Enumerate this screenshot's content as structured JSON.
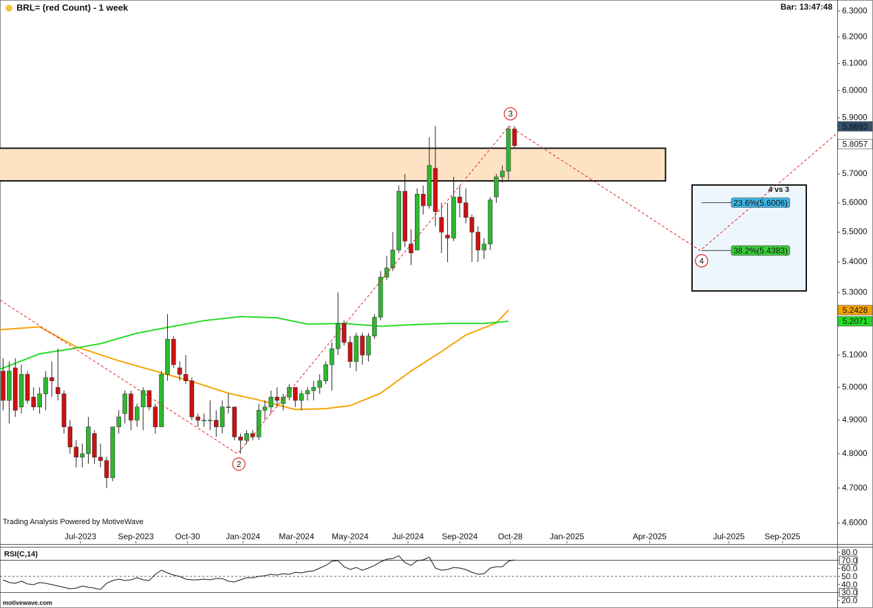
{
  "chart_data": {
    "type": "candlestick",
    "title": "BRL= (red Count) - 1 week",
    "bar_time": "Bar: 13:47:48",
    "credit": "Trading Analysis Powered by MotiveWave",
    "footer": "motivewave.com",
    "log_scale": true,
    "ylim": [
      4.543,
      6.343
    ],
    "yticks": [
      {
        "value": 4.6,
        "label": "4.6000"
      },
      {
        "value": 4.7,
        "label": "4.7000"
      },
      {
        "value": 4.8,
        "label": "4.8000"
      },
      {
        "value": 4.9,
        "label": "4.9000"
      },
      {
        "value": 5.0,
        "label": "5.0000"
      },
      {
        "value": 5.1,
        "label": "5.1000"
      },
      {
        "value": 5.2,
        "label": "5.2000"
      },
      {
        "value": 5.3,
        "label": "5.3000"
      },
      {
        "value": 5.4,
        "label": "5.4000"
      },
      {
        "value": 5.5,
        "label": "5.5000"
      },
      {
        "value": 5.6,
        "label": "5.6000"
      },
      {
        "value": 5.7,
        "label": "5.7000"
      },
      {
        "value": 5.8,
        "label": "5.8000"
      },
      {
        "value": 5.9,
        "label": "5.9000"
      },
      {
        "value": 6.0,
        "label": "6.0000"
      },
      {
        "value": 6.1,
        "label": "6.1000"
      },
      {
        "value": 6.2,
        "label": "6.2000"
      },
      {
        "value": 6.3,
        "label": "6.3000"
      }
    ],
    "xlim": [
      -0.51,
      137
    ],
    "xticks": [
      {
        "value": 12.7,
        "label": "Jul-2023"
      },
      {
        "value": 21.8,
        "label": "Sep-2023"
      },
      {
        "value": 30.3,
        "label": "Oct-30"
      },
      {
        "value": 39.4,
        "label": "Jan-2024"
      },
      {
        "value": 48.2,
        "label": "Mar-2024"
      },
      {
        "value": 57.0,
        "label": "May-2024"
      },
      {
        "value": 66.5,
        "label": "Jul-2024"
      },
      {
        "value": 75.0,
        "label": "Sep-2024"
      },
      {
        "value": 83.3,
        "label": "Oct-28"
      },
      {
        "value": 92.6,
        "label": "Jan-2025"
      },
      {
        "value": 106.2,
        "label": "Apr-2025"
      },
      {
        "value": 119.2,
        "label": "Jul-2025"
      },
      {
        "value": 128.0,
        "label": "Sep-2025"
      }
    ],
    "up_color": "#2db82d",
    "down_color": "#cc1111",
    "candles": {
      "open": [
        5.05,
        4.96,
        5.06,
        4.94,
        5.04,
        4.97,
        4.94,
        4.98,
        5.03,
        5.0,
        4.98,
        4.88,
        4.82,
        4.79,
        4.8,
        4.86,
        4.79,
        4.78,
        4.73,
        4.88,
        4.92,
        4.98,
        4.9,
        4.94,
        4.99,
        4.94,
        4.88,
        5.04,
        5.15,
        5.06,
        5.04,
        5.02,
        4.91,
        4.9,
        4.9,
        4.9,
        4.88,
        4.94,
        4.94,
        4.85,
        4.84,
        4.86,
        4.85,
        4.93,
        4.94,
        4.97,
        4.95,
        4.97,
        5.0,
        4.96,
        4.98,
        4.99,
        5.0,
        5.02,
        5.07,
        5.12,
        5.2,
        5.14,
        5.08,
        5.16,
        5.1,
        5.16,
        5.22,
        5.35,
        5.38,
        5.44,
        5.64,
        5.46,
        5.44,
        5.63,
        5.59,
        5.72,
        5.55,
        5.49,
        5.48,
        5.62,
        5.6,
        5.55,
        5.5,
        5.44,
        5.46,
        5.62,
        5.69,
        5.71,
        5.86
      ],
      "high": [
        5.09,
        5.08,
        5.09,
        5.07,
        5.05,
        5.0,
        5.0,
        5.05,
        5.08,
        5.12,
        4.99,
        4.9,
        4.84,
        4.83,
        4.91,
        4.87,
        4.83,
        4.79,
        4.88,
        4.93,
        4.99,
        4.99,
        4.95,
        5.0,
        4.99,
        4.95,
        5.05,
        5.23,
        5.16,
        5.08,
        5.1,
        5.03,
        4.92,
        4.92,
        4.96,
        4.93,
        4.96,
        4.98,
        4.94,
        4.86,
        4.87,
        4.87,
        4.95,
        4.96,
        4.99,
        5.0,
        4.98,
        5.01,
        5.0,
        4.99,
        5.0,
        5.02,
        5.04,
        5.08,
        5.14,
        5.3,
        5.21,
        5.16,
        5.17,
        5.17,
        5.17,
        5.23,
        5.37,
        5.42,
        5.5,
        5.66,
        5.7,
        5.51,
        5.65,
        5.66,
        5.83,
        5.87,
        5.6,
        5.6,
        5.69,
        5.66,
        5.65,
        5.56,
        5.52,
        5.48,
        5.62,
        5.7,
        5.73,
        5.87,
        5.87
      ],
      "low": [
        4.93,
        4.89,
        4.91,
        4.92,
        4.95,
        4.93,
        4.92,
        4.93,
        4.97,
        4.96,
        4.86,
        4.8,
        4.76,
        4.76,
        4.77,
        4.77,
        4.76,
        4.7,
        4.72,
        4.86,
        4.89,
        4.87,
        4.88,
        4.87,
        4.93,
        4.86,
        4.88,
        5.02,
        5.06,
        5.02,
        5.01,
        4.9,
        4.88,
        4.88,
        4.87,
        4.85,
        4.86,
        4.92,
        4.84,
        4.8,
        4.83,
        4.84,
        4.84,
        4.9,
        4.92,
        4.94,
        4.93,
        4.96,
        4.94,
        4.93,
        4.96,
        4.96,
        4.98,
        5.01,
        4.99,
        5.1,
        5.13,
        5.06,
        5.05,
        5.07,
        5.08,
        5.15,
        5.21,
        5.34,
        5.37,
        5.43,
        5.45,
        5.39,
        5.44,
        5.56,
        5.58,
        5.52,
        5.43,
        5.4,
        5.47,
        5.55,
        5.53,
        5.4,
        5.4,
        5.41,
        5.44,
        5.6,
        5.67,
        5.68,
        5.79
      ],
      "close": [
        4.96,
        5.05,
        4.93,
        5.04,
        4.96,
        4.94,
        4.98,
        5.03,
        5.02,
        4.98,
        4.88,
        4.82,
        4.79,
        4.8,
        4.88,
        4.79,
        4.78,
        4.73,
        4.88,
        4.91,
        4.98,
        4.9,
        4.94,
        4.99,
        4.94,
        4.88,
        5.04,
        5.15,
        5.07,
        5.04,
        5.02,
        4.91,
        4.9,
        4.9,
        4.9,
        4.88,
        4.94,
        4.94,
        4.85,
        4.84,
        4.86,
        4.85,
        4.93,
        4.94,
        4.97,
        4.96,
        4.97,
        5.0,
        4.96,
        4.98,
        4.99,
        5.0,
        5.02,
        5.07,
        5.12,
        5.2,
        5.14,
        5.08,
        5.16,
        5.1,
        5.16,
        5.22,
        5.35,
        5.38,
        5.44,
        5.64,
        5.47,
        5.43,
        5.63,
        5.59,
        5.73,
        5.57,
        5.5,
        5.48,
        5.62,
        5.6,
        5.55,
        5.5,
        5.44,
        5.46,
        5.61,
        5.69,
        5.71,
        5.86,
        5.8
      ]
    },
    "series": [
      {
        "color": "#f5a300",
        "x": [
          -0.5,
          6,
          12,
          19,
          25,
          31,
          37,
          42,
          48,
          53,
          57,
          62,
          67,
          72,
          76,
          81,
          83
        ],
        "values": [
          5.18,
          5.189,
          5.126,
          5.082,
          5.05,
          5.018,
          4.982,
          4.961,
          4.932,
          4.935,
          4.944,
          4.982,
          5.05,
          5.111,
          5.163,
          5.202,
          5.243
        ]
      },
      {
        "color": "#22dd22",
        "x": [
          -0.5,
          6,
          11,
          16,
          22,
          28,
          33,
          39,
          45,
          50,
          56,
          62,
          67,
          73,
          79,
          83
        ],
        "values": [
          5.056,
          5.104,
          5.119,
          5.136,
          5.169,
          5.191,
          5.209,
          5.222,
          5.218,
          5.198,
          5.2,
          5.191,
          5.196,
          5.2,
          5.2,
          5.207
        ]
      }
    ],
    "wave": {
      "color": "#e02020",
      "points": [
        {
          "x": -0.5,
          "value": 5.275
        },
        {
          "x": 38.5,
          "value": 4.8,
          "label": "2"
        },
        {
          "x": 83.1,
          "value": 5.87,
          "label": "3"
        },
        {
          "x": 114.5,
          "value": 5.4383,
          "label": "4"
        },
        {
          "x": 137,
          "value": 5.845
        }
      ]
    },
    "zone": {
      "from": 5.676,
      "to": 5.791,
      "x_end": 108.8,
      "color": "#fde3c4"
    },
    "fib": {
      "title": "4 vs 3",
      "levels": [
        {
          "value": 5.6006,
          "label": "23.6%(5.6006)",
          "color": "#3db6e8"
        },
        {
          "value": 5.4383,
          "label": "38.2%(5.4383)",
          "color": "#3ad13a"
        }
      ]
    },
    "price_tags": [
      {
        "value": 5.8693,
        "color": "#34506e",
        "text_color": "#ffffff"
      },
      {
        "value": 5.8057,
        "color": "#ffffff",
        "text_color": "#111111"
      },
      {
        "value": 5.2428,
        "color": "#f5a300",
        "text_color": "#111111"
      },
      {
        "value": 5.2071,
        "color": "#22dd22",
        "text_color": "#111111"
      }
    ],
    "rsi": {
      "title": "RSI(C,14)",
      "color": "#111111",
      "ylim": [
        12.3,
        86.9
      ],
      "yticks": [
        {
          "value": 80,
          "label": "80.0"
        },
        {
          "value": 70,
          "label": "70.0",
          "boxed": true
        },
        {
          "value": 60,
          "label": "60.0"
        },
        {
          "value": 50,
          "label": "50.0"
        },
        {
          "value": 40,
          "label": "40.0"
        },
        {
          "value": 30,
          "label": "30.0",
          "boxed": true
        },
        {
          "value": 20,
          "label": "20.0"
        }
      ],
      "levels": [
        70,
        50,
        30
      ],
      "level_styles": [
        "solid",
        "dashed",
        "solid"
      ],
      "values": [
        45.7,
        42.3,
        41.4,
        44,
        40.6,
        39.7,
        42.3,
        41.4,
        39.7,
        38,
        36.3,
        34.6,
        35.4,
        38,
        36.3,
        35.4,
        33.7,
        41.4,
        44.9,
        46.6,
        44.9,
        45.7,
        48.3,
        45.7,
        44.9,
        52.6,
        57.7,
        54.3,
        51.7,
        50,
        46.6,
        45.7,
        45.7,
        46.6,
        45.7,
        47.4,
        47.4,
        44,
        43.1,
        45.7,
        48.3,
        48.3,
        50,
        50.9,
        52.6,
        51.7,
        53.4,
        52.6,
        55.1,
        54.3,
        56,
        56.9,
        60.3,
        63.7,
        68.9,
        69.7,
        62,
        58.6,
        61.1,
        57.7,
        60.3,
        63.7,
        68,
        71.4,
        72.3,
        75.7,
        67.1,
        63.7,
        69.7,
        70.6,
        74,
        60.3,
        57.7,
        58.6,
        61.1,
        60.3,
        58.6,
        55.1,
        52.6,
        53.4,
        60.3,
        62,
        62,
        68.9,
        70.6
      ]
    }
  }
}
